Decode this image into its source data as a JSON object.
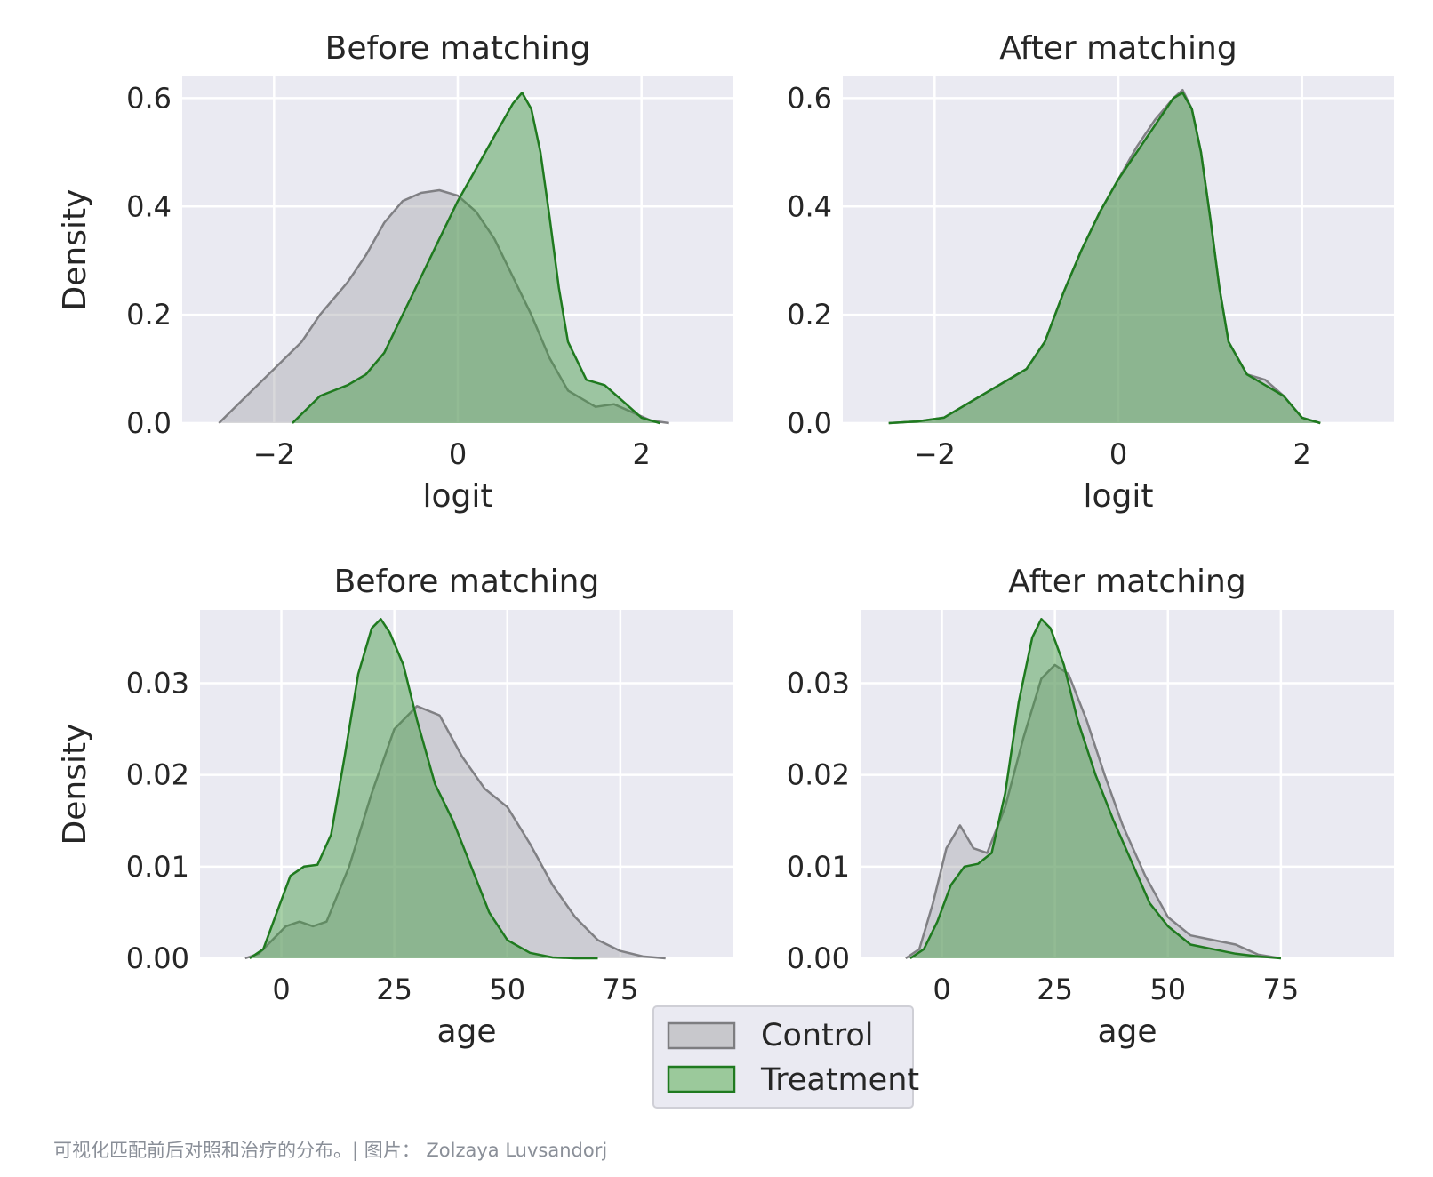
{
  "chart_data": [
    {
      "type": "area",
      "title": "Before matching",
      "xlabel": "logit",
      "ylabel": "Density",
      "xlim": [
        -3.0,
        3.0
      ],
      "ylim": [
        0,
        0.64
      ],
      "xticks": [
        -2,
        0,
        2
      ],
      "xtick_labels": [
        "−2",
        "0",
        "2"
      ],
      "yticks": [
        0,
        0.2,
        0.4,
        0.6
      ],
      "ytick_labels": [
        "0.0",
        "0.2",
        "0.4",
        "0.6"
      ],
      "grid": true,
      "series": [
        {
          "name": "Control",
          "x": [
            -2.6,
            -2.3,
            -2.0,
            -1.7,
            -1.5,
            -1.2,
            -1.0,
            -0.8,
            -0.6,
            -0.4,
            -0.2,
            0.0,
            0.2,
            0.4,
            0.6,
            0.8,
            1.0,
            1.2,
            1.5,
            1.7,
            1.9,
            2.1,
            2.3
          ],
          "y": [
            0.0,
            0.05,
            0.1,
            0.15,
            0.2,
            0.26,
            0.31,
            0.37,
            0.41,
            0.425,
            0.43,
            0.42,
            0.39,
            0.34,
            0.27,
            0.2,
            0.12,
            0.06,
            0.03,
            0.035,
            0.02,
            0.005,
            0.0
          ]
        },
        {
          "name": "Treatment",
          "x": [
            -1.8,
            -1.5,
            -1.2,
            -1.0,
            -0.8,
            -0.6,
            -0.4,
            -0.2,
            0.0,
            0.2,
            0.4,
            0.6,
            0.7,
            0.8,
            0.9,
            1.0,
            1.1,
            1.2,
            1.4,
            1.6,
            1.8,
            2.0,
            2.2
          ],
          "y": [
            0.0,
            0.05,
            0.07,
            0.09,
            0.13,
            0.2,
            0.27,
            0.34,
            0.41,
            0.47,
            0.53,
            0.59,
            0.61,
            0.58,
            0.5,
            0.38,
            0.25,
            0.15,
            0.08,
            0.07,
            0.04,
            0.01,
            0.0
          ]
        }
      ]
    },
    {
      "type": "area",
      "title": "After matching",
      "xlabel": "logit",
      "ylabel": "",
      "xlim": [
        -3.0,
        3.0
      ],
      "ylim": [
        0,
        0.64
      ],
      "xticks": [
        -2,
        0,
        2
      ],
      "xtick_labels": [
        "−2",
        "0",
        "2"
      ],
      "yticks": [
        0,
        0.2,
        0.4,
        0.6
      ],
      "ytick_labels": [
        "0.0",
        "0.2",
        "0.4",
        "0.6"
      ],
      "grid": true,
      "series": [
        {
          "name": "Control",
          "x": [
            -2.5,
            -2.2,
            -1.9,
            -1.6,
            -1.3,
            -1.0,
            -0.8,
            -0.6,
            -0.4,
            -0.2,
            0.0,
            0.2,
            0.4,
            0.6,
            0.7,
            0.8,
            0.9,
            1.0,
            1.1,
            1.2,
            1.4,
            1.6,
            1.8,
            2.0,
            2.2
          ],
          "y": [
            0.0,
            0.003,
            0.01,
            0.04,
            0.07,
            0.1,
            0.15,
            0.24,
            0.32,
            0.39,
            0.45,
            0.51,
            0.56,
            0.6,
            0.615,
            0.58,
            0.5,
            0.38,
            0.25,
            0.15,
            0.09,
            0.08,
            0.05,
            0.01,
            0.0
          ]
        },
        {
          "name": "Treatment",
          "x": [
            -2.5,
            -2.2,
            -1.9,
            -1.6,
            -1.3,
            -1.0,
            -0.8,
            -0.6,
            -0.4,
            -0.2,
            0.0,
            0.2,
            0.4,
            0.6,
            0.7,
            0.8,
            0.9,
            1.0,
            1.1,
            1.2,
            1.4,
            1.6,
            1.8,
            2.0,
            2.2
          ],
          "y": [
            0.0,
            0.003,
            0.01,
            0.04,
            0.07,
            0.1,
            0.15,
            0.24,
            0.32,
            0.39,
            0.45,
            0.5,
            0.55,
            0.6,
            0.61,
            0.58,
            0.5,
            0.38,
            0.25,
            0.15,
            0.09,
            0.07,
            0.05,
            0.01,
            0.0
          ]
        }
      ]
    },
    {
      "type": "area",
      "title": "Before matching",
      "xlabel": "age",
      "ylabel": "Density",
      "xlim": [
        -18,
        100
      ],
      "ylim": [
        0,
        0.038
      ],
      "xticks": [
        0,
        25,
        50,
        75
      ],
      "xtick_labels": [
        "0",
        "25",
        "50",
        "75"
      ],
      "yticks": [
        0,
        0.01,
        0.02,
        0.03
      ],
      "ytick_labels": [
        "0.00",
        "0.01",
        "0.02",
        "0.03"
      ],
      "grid": true,
      "series": [
        {
          "name": "Control",
          "x": [
            -8,
            -5,
            -2,
            1,
            4,
            7,
            10,
            15,
            20,
            25,
            30,
            35,
            40,
            45,
            50,
            55,
            60,
            65,
            70,
            75,
            80,
            85
          ],
          "y": [
            0.0,
            0.0005,
            0.002,
            0.0035,
            0.004,
            0.0035,
            0.004,
            0.01,
            0.018,
            0.025,
            0.0275,
            0.0265,
            0.022,
            0.0185,
            0.0165,
            0.0125,
            0.008,
            0.0045,
            0.002,
            0.0008,
            0.0002,
            0.0
          ]
        },
        {
          "name": "Treatment",
          "x": [
            -7,
            -4,
            -1,
            2,
            5,
            8,
            11,
            14,
            17,
            20,
            22,
            24,
            27,
            30,
            34,
            38,
            42,
            46,
            50,
            55,
            60,
            65,
            70
          ],
          "y": [
            0.0,
            0.001,
            0.005,
            0.009,
            0.01,
            0.0102,
            0.0135,
            0.022,
            0.031,
            0.036,
            0.037,
            0.0355,
            0.032,
            0.026,
            0.019,
            0.015,
            0.01,
            0.005,
            0.002,
            0.0006,
            0.0001,
            0.0,
            0.0
          ]
        }
      ]
    },
    {
      "type": "area",
      "title": "After matching",
      "xlabel": "age",
      "ylabel": "",
      "xlim": [
        -18,
        100
      ],
      "ylim": [
        0,
        0.038
      ],
      "xticks": [
        0,
        25,
        50,
        75
      ],
      "xtick_labels": [
        "0",
        "25",
        "50",
        "75"
      ],
      "yticks": [
        0,
        0.01,
        0.02,
        0.03
      ],
      "ytick_labels": [
        "0.00",
        "0.01",
        "0.02",
        "0.03"
      ],
      "grid": true,
      "series": [
        {
          "name": "Control",
          "x": [
            -8,
            -5,
            -2,
            1,
            4,
            7,
            10,
            14,
            18,
            22,
            25,
            28,
            32,
            36,
            40,
            45,
            50,
            55,
            60,
            65,
            70,
            75
          ],
          "y": [
            0.0,
            0.001,
            0.006,
            0.012,
            0.0145,
            0.012,
            0.0115,
            0.0165,
            0.024,
            0.0305,
            0.032,
            0.031,
            0.026,
            0.02,
            0.0145,
            0.009,
            0.0045,
            0.0025,
            0.002,
            0.0015,
            0.0004,
            0.0
          ]
        },
        {
          "name": "Treatment",
          "x": [
            -7,
            -4,
            -1,
            2,
            5,
            8,
            11,
            14,
            17,
            20,
            22,
            24,
            27,
            30,
            34,
            38,
            42,
            46,
            50,
            55,
            60,
            65,
            70,
            75
          ],
          "y": [
            0.0,
            0.001,
            0.004,
            0.008,
            0.01,
            0.0103,
            0.0115,
            0.018,
            0.028,
            0.035,
            0.037,
            0.036,
            0.032,
            0.026,
            0.02,
            0.015,
            0.0105,
            0.006,
            0.0035,
            0.0015,
            0.001,
            0.0005,
            0.0002,
            0.0
          ]
        }
      ]
    }
  ],
  "legend": {
    "items": [
      {
        "label": "Control",
        "fill": "#c8c8cc",
        "stroke": "#7d7d80"
      },
      {
        "label": "Treatment",
        "fill": "#9bc99b",
        "stroke": "#1f7a1f"
      }
    ],
    "placement": "bottom-center"
  },
  "colors": {
    "panel_background": "#eaeaf2",
    "grid": "#ffffff",
    "control_fill": "#a9a9ad",
    "control_line": "#808084",
    "treatment_fill": "#3d9a3d",
    "treatment_line": "#1f7a1f"
  },
  "caption": "可视化匹配前后对照和治疗的分布。| 图片： Zolzaya Luvsandorj"
}
